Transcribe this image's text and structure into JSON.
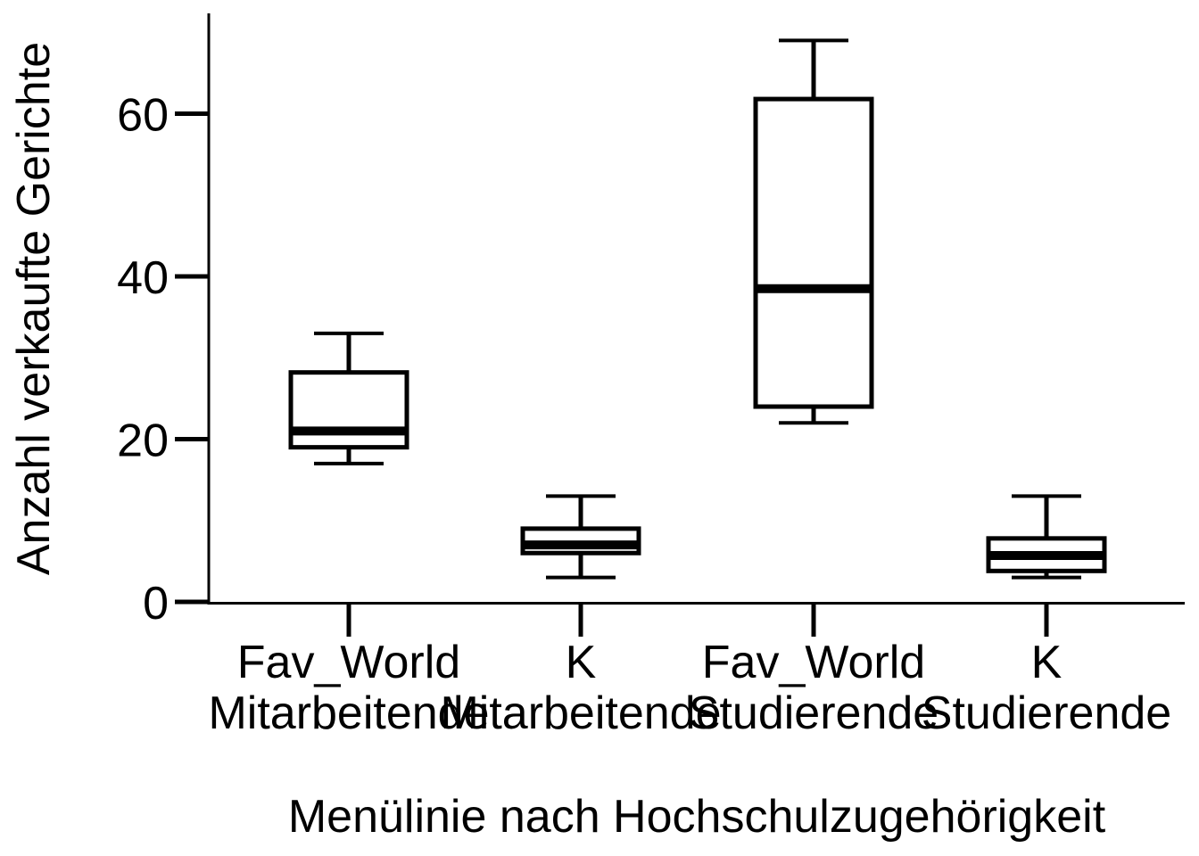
{
  "chart_data": {
    "type": "boxplot",
    "xlabel": "Menülinie nach Hochschulzugehörigkeit",
    "ylabel": "Anzahl verkaufte Gerichte",
    "ylim": [
      0,
      72
    ],
    "yticks": [
      0,
      20,
      40,
      60
    ],
    "grid": false,
    "categories": [
      {
        "line1": "Fav_World",
        "line2": "Mitarbeitende"
      },
      {
        "line1": "K",
        "line2": "Mitarbeitende"
      },
      {
        "line1": "Fav_World",
        "line2": "Studierende"
      },
      {
        "line1": "K",
        "line2": "Studierende"
      }
    ],
    "boxes": [
      {
        "whisker_low": 17,
        "q1": 19,
        "median": 21,
        "q3": 28.2,
        "whisker_high": 33
      },
      {
        "whisker_low": 3,
        "q1": 6,
        "median": 7,
        "q3": 9,
        "whisker_high": 13
      },
      {
        "whisker_low": 22,
        "q1": 24,
        "median": 38.5,
        "q3": 61.8,
        "whisker_high": 69
      },
      {
        "whisker_low": 3,
        "q1": 3.8,
        "median": 5.7,
        "q3": 7.8,
        "whisker_high": 13
      }
    ]
  }
}
